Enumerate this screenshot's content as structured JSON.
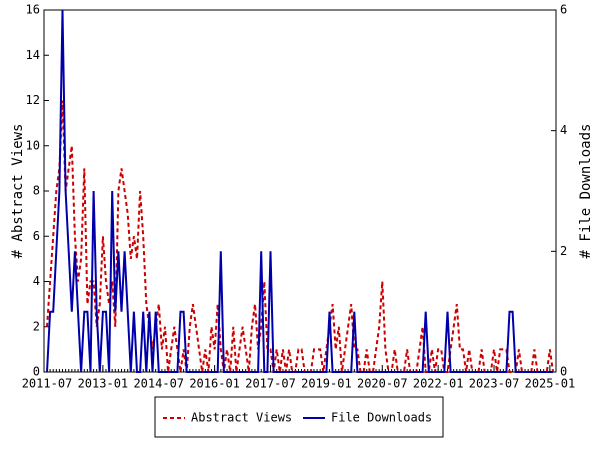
{
  "chart_data": {
    "type": "line",
    "y_label": "# Abstract Views",
    "y2_label": "# File Downloads",
    "x": [
      "2011-07",
      "2011-08",
      "2011-09",
      "2011-10",
      "2011-11",
      "2011-12",
      "2012-01",
      "2012-02",
      "2012-03",
      "2012-04",
      "2012-05",
      "2012-06",
      "2012-07",
      "2012-08",
      "2012-09",
      "2012-10",
      "2012-11",
      "2012-12",
      "2013-01",
      "2013-02",
      "2013-03",
      "2013-04",
      "2013-05",
      "2013-06",
      "2013-07",
      "2013-08",
      "2013-09",
      "2013-10",
      "2013-11",
      "2013-12",
      "2014-01",
      "2014-02",
      "2014-03",
      "2014-04",
      "2014-05",
      "2014-06",
      "2014-07",
      "2014-08",
      "2014-09",
      "2014-10",
      "2014-11",
      "2014-12",
      "2015-01",
      "2015-02",
      "2015-03",
      "2015-04",
      "2015-05",
      "2015-06",
      "2015-07",
      "2015-08",
      "2015-09",
      "2015-10",
      "2015-11",
      "2015-12",
      "2016-01",
      "2016-02",
      "2016-03",
      "2016-04",
      "2016-05",
      "2016-06",
      "2016-07",
      "2016-08",
      "2016-09",
      "2016-10",
      "2016-11",
      "2016-12",
      "2017-01",
      "2017-02",
      "2017-03",
      "2017-04",
      "2017-05",
      "2017-06",
      "2017-07",
      "2017-08",
      "2017-09",
      "2017-10",
      "2017-11",
      "2017-12",
      "2018-01",
      "2018-02",
      "2018-03",
      "2018-04",
      "2018-05",
      "2018-06",
      "2018-07",
      "2018-08",
      "2018-09",
      "2018-10",
      "2018-11",
      "2018-12",
      "2019-01",
      "2019-02",
      "2019-03",
      "2019-04",
      "2019-05",
      "2019-06",
      "2019-07",
      "2019-08",
      "2019-09",
      "2019-10",
      "2019-11",
      "2019-12",
      "2020-01",
      "2020-02",
      "2020-03",
      "2020-04",
      "2020-05",
      "2020-06",
      "2020-07",
      "2020-08",
      "2020-09",
      "2020-10",
      "2020-11",
      "2020-12",
      "2021-01",
      "2021-02",
      "2021-03",
      "2021-04",
      "2021-05",
      "2021-06",
      "2021-07",
      "2021-08",
      "2021-09",
      "2021-10",
      "2021-11",
      "2021-12",
      "2022-01",
      "2022-02",
      "2022-03",
      "2022-04",
      "2022-05",
      "2022-06",
      "2022-07",
      "2022-08",
      "2022-09",
      "2022-10",
      "2022-11",
      "2022-12",
      "2023-01",
      "2023-02",
      "2023-03",
      "2023-04",
      "2023-05",
      "2023-06",
      "2023-07",
      "2023-08",
      "2023-09",
      "2023-10",
      "2023-11",
      "2023-12",
      "2024-01",
      "2024-02",
      "2024-03",
      "2024-04",
      "2024-05",
      "2024-06",
      "2024-07",
      "2024-08",
      "2024-09",
      "2024-10",
      "2024-11",
      "2024-12",
      "2025-01",
      "2025-02"
    ],
    "xticks": [
      "2011-07",
      "2013-01",
      "2014-07",
      "2016-01",
      "2017-07",
      "2019-01",
      "2020-07",
      "2022-01",
      "2023-07",
      "2025-01"
    ],
    "ylim": [
      0,
      16
    ],
    "yticks": [
      0,
      2,
      4,
      6,
      8,
      10,
      12,
      14,
      16
    ],
    "y2lim": [
      0,
      6
    ],
    "y2ticks": [
      0,
      2,
      4,
      6
    ],
    "series": [
      {
        "name": "Abstract Views",
        "color": "#cc0000",
        "dash": true,
        "values": [
          2,
          4,
          6,
          8,
          9,
          12,
          8,
          9,
          10,
          6,
          4,
          5,
          9,
          3,
          4,
          4,
          2,
          3,
          6,
          4,
          3,
          4,
          2,
          8,
          9,
          8,
          7,
          5,
          6,
          5,
          8,
          6,
          3,
          2,
          1,
          2,
          3,
          1,
          2,
          0,
          1,
          2,
          1,
          0,
          1,
          0,
          2,
          3,
          2,
          1,
          0,
          1,
          0,
          2,
          1,
          3,
          1,
          0,
          1,
          0,
          2,
          0,
          1,
          2,
          1,
          0,
          2,
          3,
          1,
          2,
          4,
          1,
          1,
          0,
          1,
          0,
          1,
          0,
          1,
          0,
          0,
          1,
          1,
          0,
          0,
          0,
          1,
          1,
          1,
          0,
          1,
          2,
          3,
          1,
          2,
          0,
          1,
          2,
          3,
          1,
          1,
          0,
          0,
          1,
          0,
          0,
          1,
          2,
          4,
          1,
          0,
          0,
          1,
          0,
          0,
          0,
          1,
          0,
          0,
          0,
          1,
          2,
          0,
          0,
          1,
          0,
          1,
          1,
          0,
          0,
          1,
          2,
          3,
          1,
          1,
          0,
          1,
          0,
          0,
          0,
          1,
          0,
          0,
          0,
          1,
          0,
          1,
          1,
          1,
          0,
          0,
          0,
          1,
          0,
          0,
          0,
          0,
          1,
          0,
          0,
          0,
          0,
          1,
          0
        ]
      },
      {
        "name": "File Downloads",
        "color": "#0000aa",
        "axis": "y2",
        "values": [
          0,
          1,
          1,
          2,
          3,
          6,
          3,
          2,
          1,
          2,
          1,
          0,
          1,
          1,
          0,
          3,
          1,
          0,
          1,
          1,
          0,
          3,
          1,
          2,
          1,
          2,
          1,
          0,
          1,
          0,
          0,
          1,
          0,
          1,
          0,
          1,
          0,
          0,
          0,
          0,
          0,
          0,
          0,
          1,
          1,
          0,
          0,
          0,
          0,
          0,
          0,
          0,
          0,
          0,
          0,
          0,
          2,
          0,
          0,
          0,
          0,
          0,
          0,
          0,
          0,
          0,
          0,
          0,
          0,
          2,
          0,
          0,
          2,
          0,
          0,
          0,
          0,
          0,
          0,
          0,
          0,
          0,
          0,
          0,
          0,
          0,
          0,
          0,
          0,
          0,
          0,
          1,
          0,
          0,
          0,
          0,
          0,
          0,
          0,
          1,
          0,
          0,
          0,
          0,
          0,
          0,
          0,
          0,
          0,
          0,
          0,
          0,
          0,
          0,
          0,
          0,
          0,
          0,
          0,
          0,
          0,
          0,
          1,
          0,
          0,
          0,
          0,
          0,
          0,
          1,
          0,
          0,
          0,
          0,
          0,
          0,
          0,
          0,
          0,
          0,
          0,
          0,
          0,
          0,
          0,
          0,
          0,
          0,
          0,
          1,
          1,
          0,
          0,
          0,
          0,
          0,
          0,
          0,
          0,
          0,
          0,
          0,
          0,
          0
        ]
      }
    ]
  }
}
